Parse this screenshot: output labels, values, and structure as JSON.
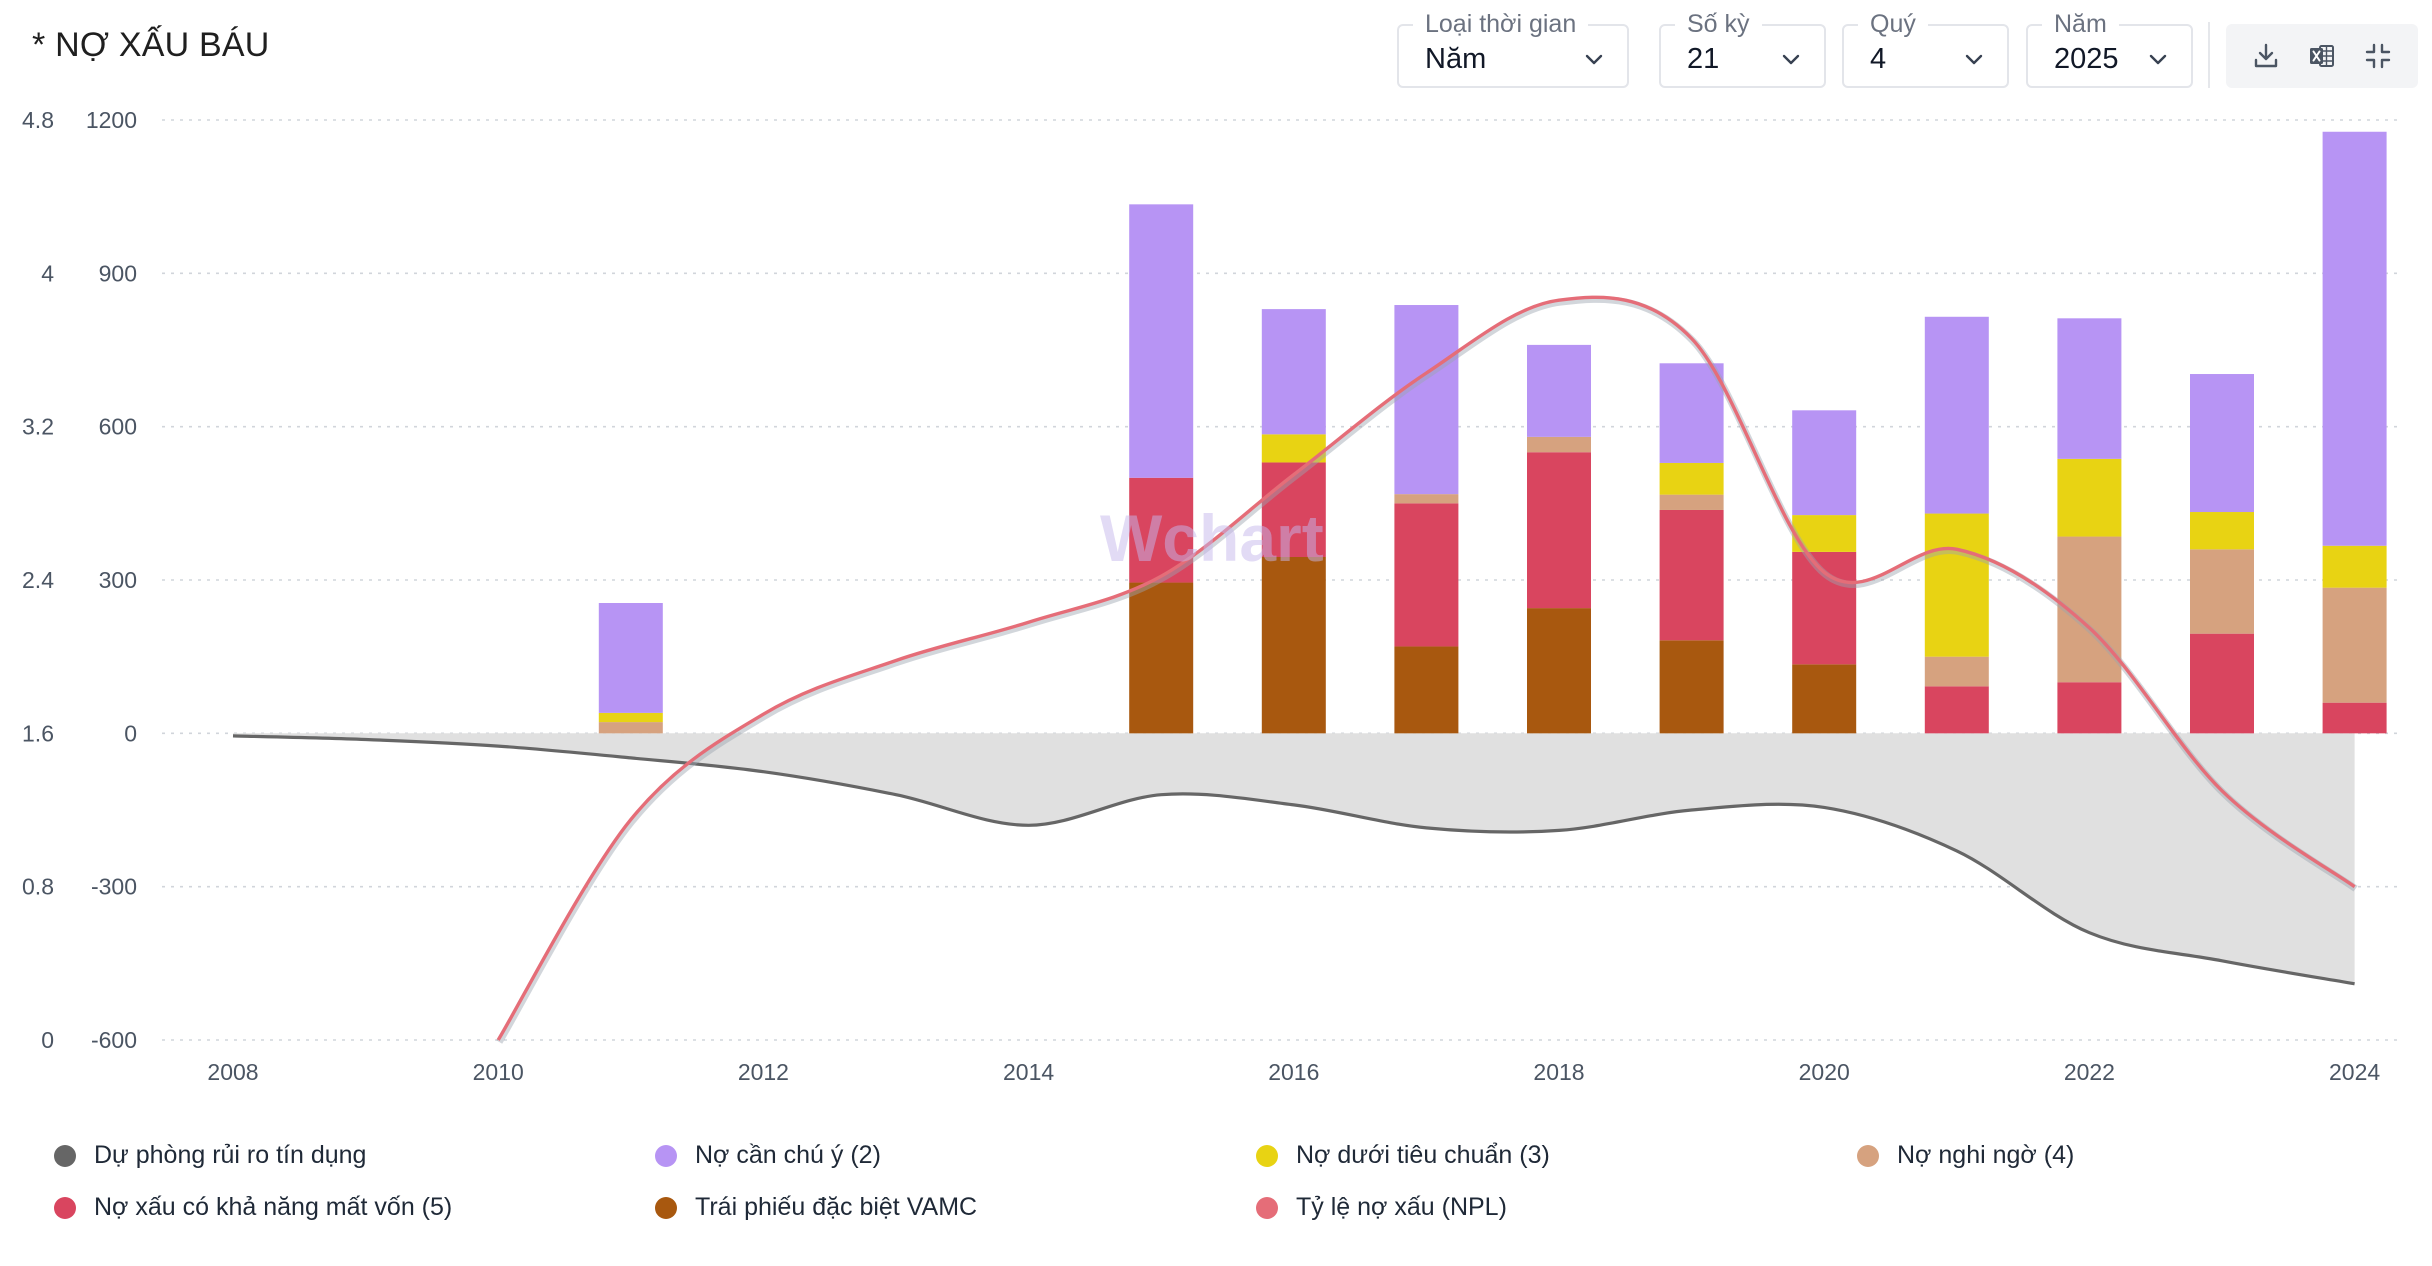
{
  "title": "* NỢ XẤU BÁU",
  "controls": [
    {
      "label": "Loại thời gian",
      "value": "Năm"
    },
    {
      "label": "Số kỳ",
      "value": "21"
    },
    {
      "label": "Quý",
      "value": "4"
    },
    {
      "label": "Năm",
      "value": "2025"
    }
  ],
  "tools": [
    "download-icon",
    "excel-icon",
    "collapse-icon"
  ],
  "watermark": "Wchart",
  "colors": {
    "provision": "#666666",
    "watch": "#b794f4",
    "substandard": "#e8d313",
    "doubtful": "#d6a27f",
    "loss": "#d9455f",
    "vamc": "#a8580f",
    "npl": "#e56d78",
    "area": "#e0e0e0",
    "grid": "#d1d5db"
  },
  "chart_data": {
    "type": "bar",
    "stacked": true,
    "categories": [
      "2008",
      "2009",
      "2010",
      "2011",
      "2012",
      "2013",
      "2014",
      "2015",
      "2016",
      "2017",
      "2018",
      "2019",
      "2020",
      "2021",
      "2022",
      "2023",
      "2024"
    ],
    "x_tick_labels": [
      "2008",
      "2010",
      "2012",
      "2014",
      "2016",
      "2018",
      "2020",
      "2022",
      "2024"
    ],
    "y_left_ticks": [
      "4.8",
      "4",
      "3.2",
      "2.4",
      "1.6",
      "0.8",
      "0"
    ],
    "y_right_ticks": [
      "1200",
      "900",
      "600",
      "300",
      "0",
      "-300",
      "-600"
    ],
    "ylim_right": [
      -600,
      1200
    ],
    "ylim_left": [
      0,
      4.8
    ],
    "grid": true,
    "legend_position": "bottom",
    "series": [
      {
        "key": "provision",
        "name": "Dự phòng rủi ro tín dụng",
        "type": "area",
        "values": [
          -5,
          -12,
          -25,
          -48,
          -75,
          -120,
          -180,
          -120,
          -140,
          -185,
          -190,
          -150,
          -145,
          -230,
          -390,
          -445,
          -490
        ]
      },
      {
        "key": "watch",
        "name": "Nợ cần chú ý (2)",
        "type": "bar",
        "values": [
          0,
          0,
          0,
          215,
          0,
          0,
          0,
          535,
          245,
          370,
          180,
          195,
          205,
          385,
          275,
          270,
          810
        ]
      },
      {
        "key": "substandard",
        "name": "Nợ dưới tiêu chuẩn (3)",
        "type": "bar",
        "values": [
          0,
          0,
          0,
          18,
          0,
          0,
          0,
          0,
          55,
          0,
          0,
          62,
          72,
          280,
          152,
          73,
          82
        ]
      },
      {
        "key": "doubtful",
        "name": "Nợ nghi ngờ (4)",
        "type": "bar",
        "values": [
          0,
          0,
          0,
          22,
          0,
          0,
          0,
          0,
          0,
          18,
          30,
          30,
          0,
          58,
          285,
          165,
          225
        ]
      },
      {
        "key": "loss",
        "name": "Nợ xấu có khả năng mất vốn (5)",
        "type": "bar",
        "values": [
          0,
          0,
          0,
          0,
          0,
          0,
          0,
          205,
          185,
          280,
          305,
          255,
          220,
          92,
          100,
          195,
          60
        ]
      },
      {
        "key": "vamc",
        "name": "Trái phiếu đặc biệt VAMC",
        "type": "bar",
        "values": [
          0,
          0,
          0,
          0,
          0,
          0,
          0,
          295,
          345,
          170,
          245,
          182,
          135,
          0,
          0,
          0,
          0
        ]
      },
      {
        "key": "npl",
        "name": "Tỷ lệ nợ xấu (NPL)",
        "type": "line",
        "axis": "left",
        "values": [
          null,
          null,
          0,
          1.15,
          1.7,
          1.98,
          2.18,
          2.42,
          2.95,
          3.48,
          3.86,
          3.66,
          2.44,
          2.56,
          2.15,
          1.3,
          0.8
        ]
      }
    ]
  }
}
